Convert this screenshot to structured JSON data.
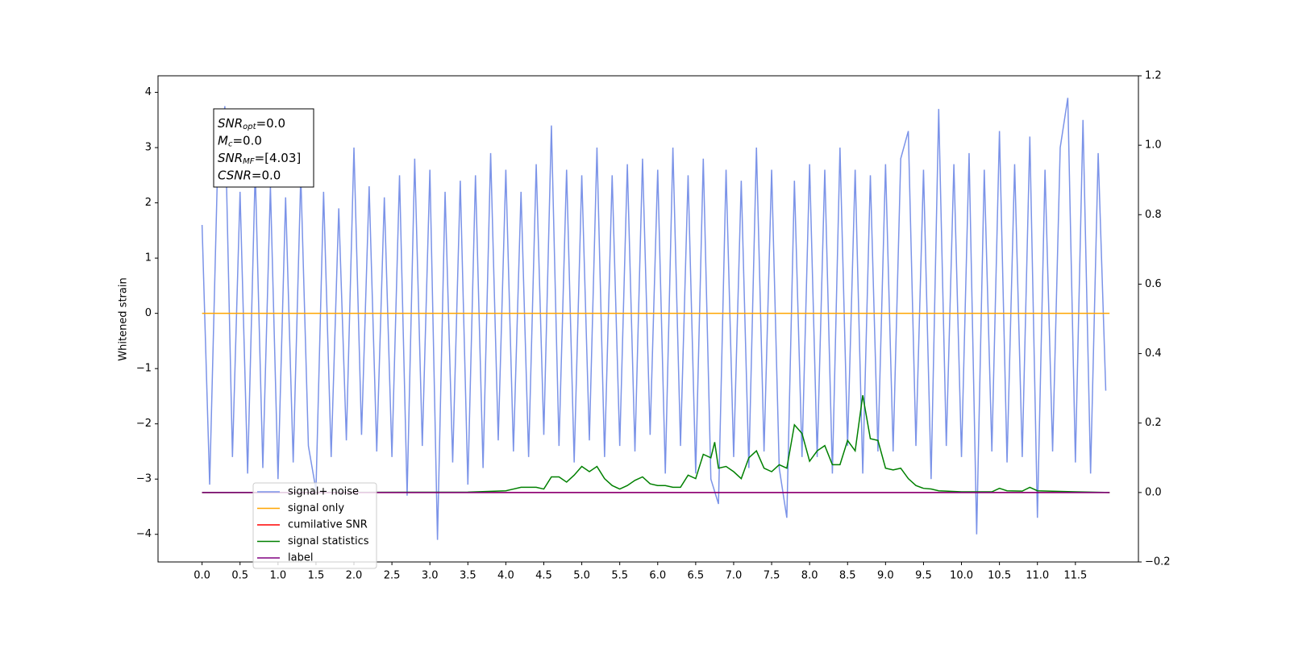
{
  "chart_data": {
    "type": "line",
    "ylabel": "Whitened strain",
    "xlim": [
      -0.58,
      12.33
    ],
    "ylim": [
      -4.5,
      4.3
    ],
    "y2lim": [
      -0.2,
      1.2
    ],
    "xticks": [
      {
        "value": 0,
        "label": "0.0"
      },
      {
        "value": 0.5,
        "label": "0.5"
      },
      {
        "value": 1,
        "label": "1.0"
      },
      {
        "value": 1.5,
        "label": "1.5"
      },
      {
        "value": 2,
        "label": "2.0"
      },
      {
        "value": 2.5,
        "label": "2.5"
      },
      {
        "value": 3,
        "label": "3.0"
      },
      {
        "value": 3.5,
        "label": "3.5"
      },
      {
        "value": 4,
        "label": "4.0"
      },
      {
        "value": 4.5,
        "label": "4.5"
      },
      {
        "value": 5,
        "label": "5.0"
      },
      {
        "value": 5.5,
        "label": "5.5"
      },
      {
        "value": 6,
        "label": "6.0"
      },
      {
        "value": 6.5,
        "label": "6.5"
      },
      {
        "value": 7,
        "label": "7.0"
      },
      {
        "value": 7.5,
        "label": "7.5"
      },
      {
        "value": 8,
        "label": "8.0"
      },
      {
        "value": 8.5,
        "label": "8.5"
      },
      {
        "value": 9,
        "label": "9.0"
      },
      {
        "value": 9.5,
        "label": "9.5"
      },
      {
        "value": 10,
        "label": "10.0"
      },
      {
        "value": 10.5,
        "label": "10.5"
      },
      {
        "value": 11,
        "label": "11.0"
      },
      {
        "value": 11.5,
        "label": "11.5"
      }
    ],
    "yticks": [
      {
        "value": -4,
        "label": "−4"
      },
      {
        "value": -3,
        "label": "−3"
      },
      {
        "value": -2,
        "label": "−2"
      },
      {
        "value": -1,
        "label": "−1"
      },
      0,
      1,
      2,
      3,
      4
    ],
    "y2ticks": [
      {
        "value": -0.2,
        "label": "−0.2"
      },
      {
        "value": 0,
        "label": "0.0"
      },
      {
        "value": 0.2,
        "label": "0.2"
      },
      {
        "value": 0.4,
        "label": "0.4"
      },
      {
        "value": 0.6,
        "label": "0.6"
      },
      {
        "value": 0.8,
        "label": "0.8"
      },
      {
        "value": 1,
        "label": "1.0"
      },
      {
        "value": 1.2,
        "label": "1.2"
      }
    ],
    "annotation": [
      {
        "main": "SNR",
        "sub": "opt",
        "text": "=0.0"
      },
      {
        "main": "M",
        "sub": "c",
        "text": "=0.0"
      },
      {
        "main": "SNR",
        "sub": "MF",
        "text": "=[4.03]"
      },
      {
        "main": "CSNR",
        "text": "=0.0"
      }
    ],
    "legend": "lower left",
    "series": [
      {
        "name": "signal+ noise",
        "color": "#7b93e8",
        "x": [
          0,
          0.1,
          0.2,
          0.3,
          0.4,
          0.5,
          0.6,
          0.7,
          0.8,
          0.9,
          1,
          1.1,
          1.2,
          1.3,
          1.4,
          1.5,
          1.6,
          1.7,
          1.8,
          1.9,
          2,
          2.1,
          2.2,
          2.3,
          2.4,
          2.5,
          2.6,
          2.7,
          2.8,
          2.9,
          3,
          3.1,
          3.2,
          3.3,
          3.4,
          3.5,
          3.6,
          3.7,
          3.8,
          3.9,
          4,
          4.1,
          4.2,
          4.3,
          4.4,
          4.5,
          4.6,
          4.7,
          4.8,
          4.9,
          5,
          5.1,
          5.2,
          5.3,
          5.4,
          5.5,
          5.6,
          5.7,
          5.8,
          5.9,
          6,
          6.1,
          6.2,
          6.3,
          6.4,
          6.5,
          6.6,
          6.7,
          6.8,
          6.9,
          7,
          7.1,
          7.2,
          7.3,
          7.4,
          7.5,
          7.6,
          7.7,
          7.8,
          7.9,
          8,
          8.1,
          8.2,
          8.3,
          8.4,
          8.5,
          8.6,
          8.7,
          8.8,
          8.9,
          9,
          9.1,
          9.2,
          9.3,
          9.4,
          9.5,
          9.6,
          9.7,
          9.8,
          9.9,
          10,
          10.1,
          10.2,
          10.3,
          10.4,
          10.5,
          10.6,
          10.7,
          10.8,
          10.9,
          11,
          11.1,
          11.2,
          11.3,
          11.4,
          11.5,
          11.6,
          11.7,
          11.8,
          11.9
        ],
        "values": [
          1.6,
          -3.1,
          2.4,
          3.75,
          -2.6,
          2.2,
          -2.9,
          2.6,
          -2.8,
          2.3,
          -3.0,
          2.1,
          -2.7,
          2.5,
          -2.4,
          -3.2,
          2.2,
          -2.6,
          1.9,
          -2.3,
          3.0,
          -2.2,
          2.3,
          -2.5,
          2.1,
          -2.6,
          2.5,
          -3.3,
          2.8,
          -2.4,
          2.6,
          -4.1,
          2.2,
          -2.7,
          2.4,
          -3.1,
          2.5,
          -2.8,
          2.9,
          -2.3,
          2.6,
          -2.5,
          2.2,
          -2.6,
          2.7,
          -2.2,
          3.4,
          -2.4,
          2.6,
          -2.7,
          2.5,
          -2.3,
          3.0,
          -2.6,
          2.5,
          -2.4,
          2.7,
          -2.5,
          2.8,
          -2.2,
          2.6,
          -2.9,
          3.0,
          -2.4,
          2.5,
          -2.9,
          2.8,
          -3.0,
          -3.45,
          2.6,
          -2.6,
          2.4,
          -2.8,
          3.0,
          -2.5,
          2.6,
          -2.8,
          -3.7,
          2.4,
          -2.6,
          2.7,
          -2.6,
          2.6,
          -2.9,
          3.0,
          -2.4,
          2.6,
          -2.9,
          2.5,
          -2.5,
          2.7,
          -2.5,
          2.8,
          3.3,
          -2.4,
          2.6,
          -3.0,
          3.7,
          -2.4,
          2.7,
          -2.6,
          2.9,
          -4.0,
          2.6,
          -2.5,
          3.3,
          -2.7,
          2.7,
          -2.6,
          3.2,
          -3.7,
          2.6,
          -2.5,
          3.0,
          3.9,
          -2.7,
          3.5,
          -2.9,
          2.9,
          -1.4
        ]
      },
      {
        "name": "signal only",
        "color": "#ffa500",
        "x": [
          0,
          11.95
        ],
        "values": [
          0,
          0
        ]
      },
      {
        "name": "cumilative SNR",
        "color": "#ff0000",
        "axis": "y2",
        "x": [
          0,
          11.95
        ],
        "values": [
          0,
          0
        ]
      },
      {
        "name": "signal statistics",
        "color": "#008000",
        "axis": "y2",
        "x": [
          0,
          3.5,
          4,
          4.2,
          4.4,
          4.5,
          4.6,
          4.7,
          4.8,
          4.9,
          5,
          5.1,
          5.2,
          5.3,
          5.4,
          5.5,
          5.6,
          5.7,
          5.8,
          5.9,
          6,
          6.1,
          6.2,
          6.3,
          6.4,
          6.5,
          6.6,
          6.7,
          6.75,
          6.8,
          6.9,
          7,
          7.1,
          7.2,
          7.3,
          7.4,
          7.5,
          7.6,
          7.7,
          7.8,
          7.9,
          8,
          8.1,
          8.2,
          8.3,
          8.4,
          8.5,
          8.6,
          8.7,
          8.8,
          8.9,
          9,
          9.1,
          9.2,
          9.3,
          9.4,
          9.5,
          9.6,
          9.7,
          9.8,
          10,
          10.4,
          10.5,
          10.6,
          10.8,
          10.9,
          11,
          11.5,
          11.95
        ],
        "values": [
          0,
          0.001,
          0.005,
          0.015,
          0.015,
          0.01,
          0.045,
          0.045,
          0.03,
          0.05,
          0.075,
          0.06,
          0.075,
          0.04,
          0.02,
          0.01,
          0.02,
          0.035,
          0.045,
          0.025,
          0.02,
          0.02,
          0.015,
          0.015,
          0.05,
          0.04,
          0.11,
          0.1,
          0.145,
          0.07,
          0.075,
          0.06,
          0.04,
          0.1,
          0.12,
          0.07,
          0.06,
          0.08,
          0.07,
          0.195,
          0.17,
          0.09,
          0.12,
          0.135,
          0.08,
          0.08,
          0.15,
          0.12,
          0.28,
          0.155,
          0.15,
          0.07,
          0.065,
          0.07,
          0.04,
          0.02,
          0.012,
          0.01,
          0.005,
          0.004,
          0.002,
          0.002,
          0.012,
          0.005,
          0.004,
          0.015,
          0.005,
          0.002,
          0
        ]
      },
      {
        "name": "label",
        "color": "#800080",
        "axis": "y2",
        "x": [
          0,
          11.95
        ],
        "values": [
          0,
          0
        ]
      }
    ]
  }
}
